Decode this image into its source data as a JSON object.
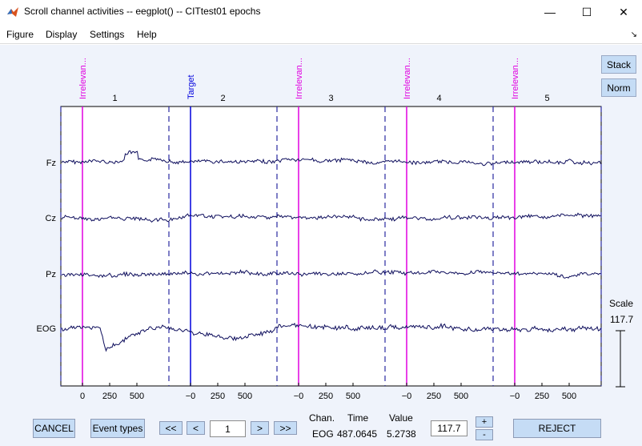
{
  "window": {
    "title": "Scroll channel activities -- eegplot() -- CITtest01 epochs",
    "minimize_glyph": "—",
    "maximize_glyph": "☐",
    "close_glyph": "✕"
  },
  "menu": {
    "items": [
      "Figure",
      "Display",
      "Settings",
      "Help"
    ],
    "overflow_glyph": "↘"
  },
  "side_buttons": {
    "stack": "Stack",
    "norm": "Norm"
  },
  "scale": {
    "label": "Scale",
    "value": "117.7"
  },
  "plot": {
    "channels": [
      "Fz",
      "Cz",
      "Pz",
      "EOG"
    ],
    "epochs": [
      "1",
      "2",
      "3",
      "4",
      "5"
    ],
    "x_tick_labels": [
      "0",
      "250",
      "500"
    ],
    "first_tick_label": "0",
    "other_first_tick_label": "−0",
    "events": [
      {
        "label": "Irrelevan...",
        "color": "#e000e0"
      },
      {
        "label": "Target",
        "color": "#0000dd"
      },
      {
        "label": "Irrelevan...",
        "color": "#e000e0"
      },
      {
        "label": "Irrelevan...",
        "color": "#e000e0"
      },
      {
        "label": "Irrelevan...",
        "color": "#e000e0"
      }
    ],
    "trace_color": "#0d0d5c",
    "boundary_color": "#2a2aa0"
  },
  "controls": {
    "cancel": "CANCEL",
    "event_types": "Event types",
    "first": "<<",
    "prev": "<",
    "page": "1",
    "next": ">",
    "last": ">>",
    "chan_header": "Chan.",
    "time_header": "Time",
    "value_header": "Value",
    "chan_value": "EOG",
    "time_value": "487.0645",
    "value_value": "5.2738",
    "scale_input": "117.7",
    "plus": "+",
    "minus": "-",
    "reject": "REJECT"
  }
}
